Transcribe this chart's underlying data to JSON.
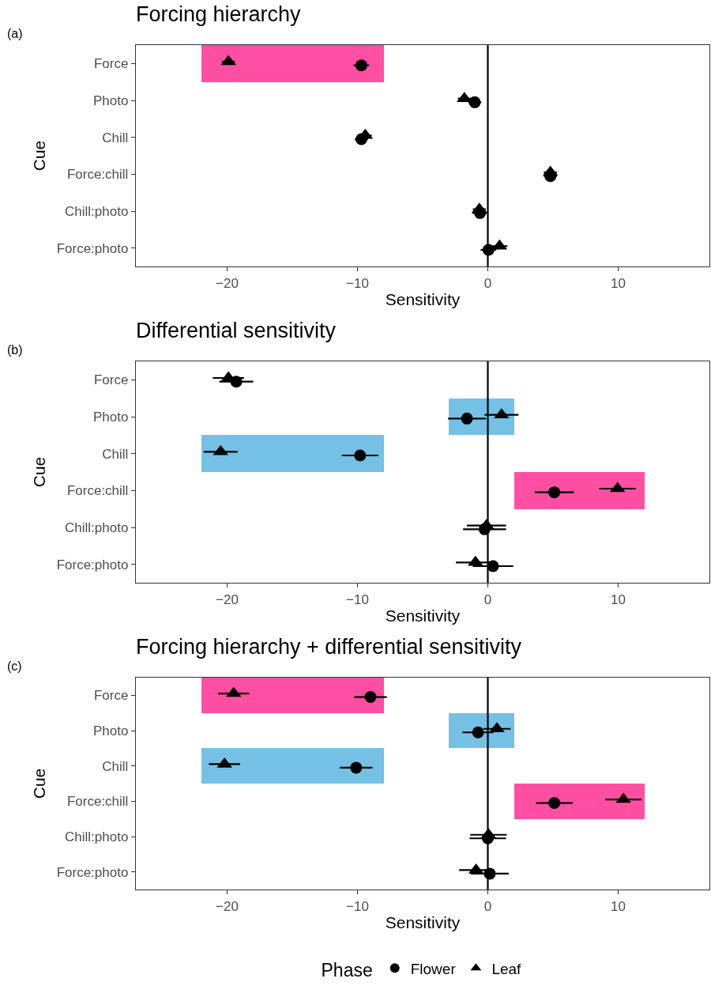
{
  "chart_data": [
    {
      "type": "scatter",
      "title": "Forcing hierarchy",
      "xlabel": "Sensitivity",
      "ylabel": "Cue",
      "orientation": "horizontal",
      "annotations": [
        "(a)"
      ],
      "categories": [
        "Force",
        "Photo",
        "Chill",
        "Force:chill",
        "Chill:photo",
        "Force:photo"
      ],
      "xlim": [
        -27,
        17
      ],
      "xticks": [
        -20,
        -10,
        0,
        10
      ],
      "grid": false,
      "ref_lines": [
        {
          "axis": "x",
          "value": 0,
          "color": "#000000"
        }
      ],
      "series": [
        {
          "type": "bar",
          "values": [
            14,
            null,
            null,
            null,
            null,
            null
          ],
          "base": [
            -22,
            null,
            null,
            null,
            null,
            null
          ],
          "colors": [
            "#ff4fa3",
            null,
            null,
            null,
            null,
            null
          ]
        },
        {
          "color": "#000000",
          "marker": "circle",
          "values": [
            -9.7,
            -1.0,
            -9.7,
            4.8,
            -0.6,
            0.05
          ],
          "errors": [
            0.6,
            0.5,
            0.5,
            0.5,
            0.6,
            0.6
          ]
        },
        {
          "color": "#000000",
          "marker": "triangle",
          "values": [
            -19.9,
            -1.8,
            -9.4,
            4.8,
            -0.65,
            0.9
          ],
          "errors": [
            0.5,
            0.5,
            0.5,
            0.5,
            0.5,
            0.6
          ]
        }
      ]
    },
    {
      "type": "scatter",
      "title": "Differential sensitivity",
      "xlabel": "Sensitivity",
      "ylabel": "Cue",
      "orientation": "horizontal",
      "annotations": [
        "(b)"
      ],
      "categories": [
        "Force",
        "Photo",
        "Chill",
        "Force:chill",
        "Chill:photo",
        "Force:photo"
      ],
      "xlim": [
        -27,
        17
      ],
      "xticks": [
        -20,
        -10,
        0,
        10
      ],
      "grid": false,
      "ref_lines": [
        {
          "axis": "x",
          "value": 0,
          "color": "#000000"
        }
      ],
      "series": [
        {
          "type": "bar",
          "values": [
            null,
            5,
            14,
            10,
            null,
            null
          ],
          "base": [
            null,
            -3,
            -22,
            2,
            null,
            null
          ],
          "colors": [
            null,
            "#75c1e6",
            "#75c1e6",
            "#ff4fa3",
            null,
            null
          ]
        },
        {
          "color": "#000000",
          "marker": "circle",
          "values": [
            -19.3,
            -1.6,
            -9.8,
            5.1,
            -0.25,
            0.4
          ],
          "errors": [
            1.3,
            1.45,
            1.4,
            1.5,
            1.65,
            1.55
          ]
        },
        {
          "color": "#000000",
          "marker": "triangle",
          "values": [
            -19.9,
            1.05,
            -20.5,
            9.95,
            -0.1,
            -0.95
          ],
          "errors": [
            1.2,
            1.3,
            1.3,
            1.4,
            1.5,
            1.5
          ]
        }
      ]
    },
    {
      "type": "scatter",
      "title": "Forcing hierarchy + differential sensitivity",
      "xlabel": "Sensitivity",
      "ylabel": "Cue",
      "orientation": "horizontal",
      "annotations": [
        "(c)"
      ],
      "categories": [
        "Force",
        "Photo",
        "Chill",
        "Force:chill",
        "Chill:photo",
        "Force:photo"
      ],
      "xlim": [
        -27,
        17
      ],
      "xticks": [
        -20,
        -10,
        0,
        10
      ],
      "grid": false,
      "legend": "bottom",
      "legend_title": "Phase",
      "ref_lines": [
        {
          "axis": "x",
          "value": 0,
          "color": "#000000"
        }
      ],
      "series": [
        {
          "type": "bar",
          "values": [
            14,
            5,
            14,
            10,
            null,
            null
          ],
          "base": [
            -22,
            -3,
            -22,
            2,
            null,
            null
          ],
          "colors": [
            "#ff4fa3",
            "#75c1e6",
            "#75c1e6",
            "#ff4fa3",
            null,
            null
          ]
        },
        {
          "name": "Flower",
          "color": "#000000",
          "marker": "circle",
          "values": [
            -9.0,
            -0.75,
            -10.1,
            5.1,
            0.0,
            0.15
          ],
          "errors": [
            1.25,
            1.2,
            1.25,
            1.4,
            1.4,
            1.45
          ]
        },
        {
          "name": "Leaf",
          "color": "#000000",
          "marker": "triangle",
          "values": [
            -19.5,
            0.7,
            -20.2,
            10.4,
            0.05,
            -0.9
          ],
          "errors": [
            1.2,
            1.05,
            1.2,
            1.4,
            1.4,
            1.3
          ]
        }
      ]
    }
  ]
}
